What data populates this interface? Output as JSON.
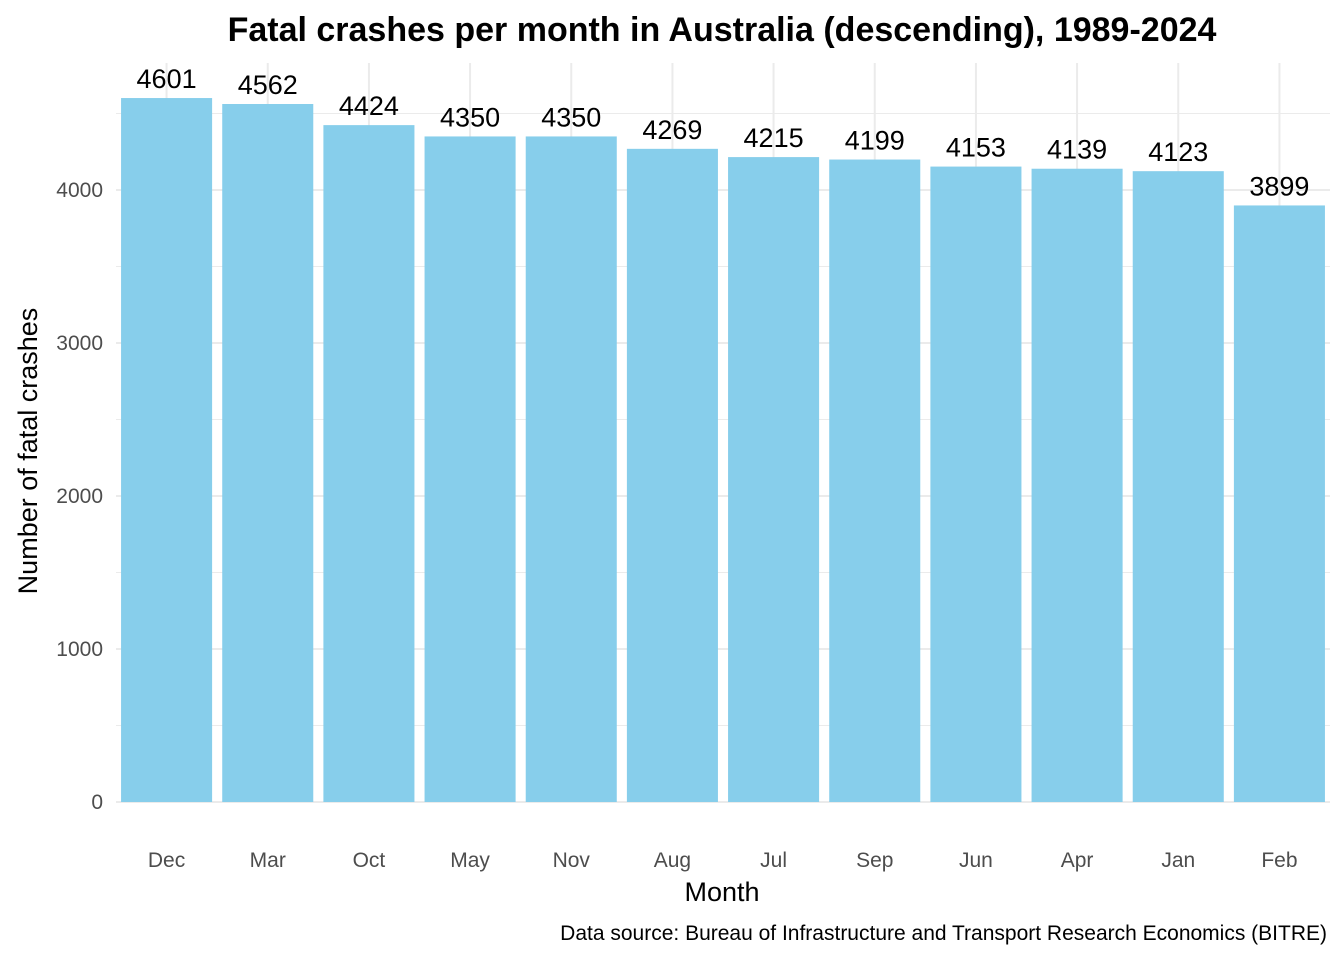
{
  "chart_data": {
    "type": "bar",
    "title": "Fatal crashes per month in Australia (descending), 1989-2024",
    "xlabel": "Month",
    "ylabel": "Number of fatal crashes",
    "caption": "Data source: Bureau of Infrastructure and Transport Research Economics (BITRE)",
    "categories": [
      "Dec",
      "Mar",
      "Oct",
      "May",
      "Nov",
      "Aug",
      "Jul",
      "Sep",
      "Jun",
      "Apr",
      "Jan",
      "Feb"
    ],
    "values": [
      4601,
      4562,
      4424,
      4350,
      4350,
      4269,
      4215,
      4199,
      4153,
      4139,
      4123,
      3899
    ],
    "data_labels": [
      "4601",
      "4562",
      "4424",
      "4350",
      "4350",
      "4269",
      "4215",
      "4199",
      "4153",
      "4139",
      "4123",
      "3899"
    ],
    "ylim": [
      0,
      4830
    ],
    "y_ticks": [
      0,
      1000,
      2000,
      3000,
      4000
    ],
    "y_tick_labels": [
      "0",
      "1000",
      "2000",
      "3000",
      "4000"
    ],
    "grid": true,
    "legend": "none",
    "bar_color": "#87CEEB",
    "grid_color": "#ebebeb"
  }
}
